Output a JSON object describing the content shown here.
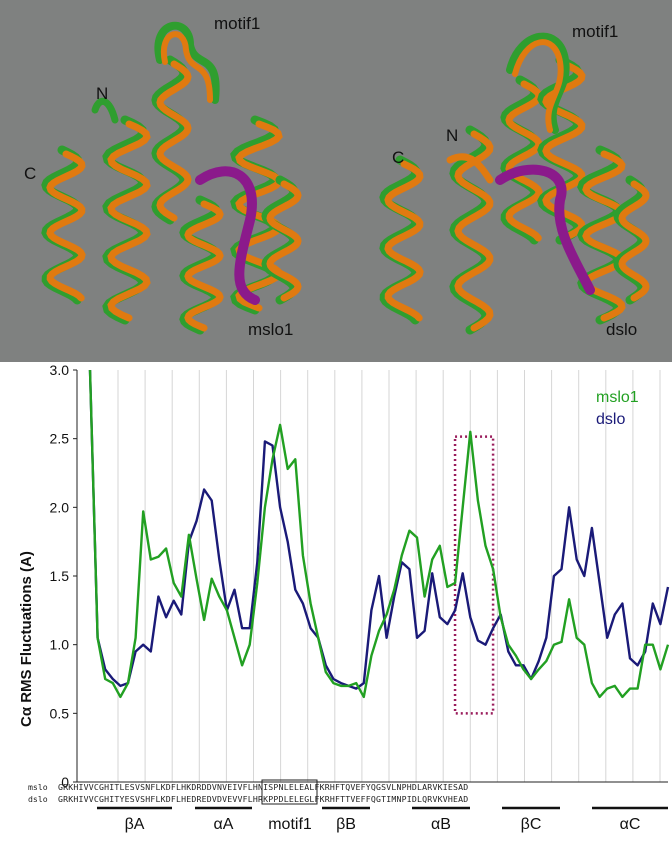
{
  "structures": {
    "left": {
      "motif": "motif1",
      "n_term": "N",
      "c_term": "C",
      "name": "mslo1"
    },
    "right": {
      "motif": "motif1",
      "n_term": "N",
      "c_term": "C",
      "name": "dslo"
    },
    "colors": {
      "ribbon_a": "#2f9e2f",
      "ribbon_b": "#e07a10",
      "motif_region": "#8b1a8b",
      "background": "#7f8180"
    }
  },
  "chart_data": {
    "type": "line",
    "title": "",
    "ylabel": "Cα RMS Fluctuations (A)",
    "xlabel": "",
    "ylim": [
      0,
      3.0
    ],
    "yticks": [
      "0",
      "0.5",
      "1.0",
      "1.5",
      "2.0",
      "2.5",
      "3.0"
    ],
    "grid": "vertical lines",
    "legend_position": "top-right",
    "series": [
      {
        "name": "mslo1",
        "color": "#22a022",
        "values": [
          3.0,
          1.05,
          0.75,
          0.72,
          0.62,
          0.72,
          1.05,
          1.97,
          1.62,
          1.64,
          1.7,
          1.45,
          1.35,
          1.8,
          1.48,
          1.18,
          1.48,
          1.35,
          1.25,
          1.05,
          0.85,
          1.0,
          1.45,
          2.0,
          2.35,
          2.6,
          2.28,
          2.35,
          1.65,
          1.3,
          1.05,
          0.8,
          0.72,
          0.7,
          0.7,
          0.72,
          0.62,
          0.92,
          1.1,
          1.22,
          1.4,
          1.65,
          1.83,
          1.78,
          1.35,
          1.62,
          1.72,
          1.42,
          1.45,
          2.0,
          2.55,
          2.05,
          1.72,
          1.55,
          1.2,
          1.0,
          0.92,
          0.82,
          0.75,
          0.82,
          0.88,
          1.0,
          1.02,
          1.33,
          1.05,
          1.0,
          0.72,
          0.62,
          0.68,
          0.7,
          0.62,
          0.68,
          0.68,
          1.0,
          1.0,
          0.82,
          1.0
        ]
      },
      {
        "name": "dslo",
        "color": "#1a1a78",
        "values": [
          3.0,
          1.05,
          0.82,
          0.75,
          0.7,
          0.72,
          0.95,
          1.0,
          0.95,
          1.35,
          1.2,
          1.32,
          1.22,
          1.75,
          1.9,
          2.13,
          2.05,
          1.62,
          1.25,
          1.4,
          1.12,
          1.12,
          1.6,
          2.48,
          2.45,
          2.0,
          1.75,
          1.4,
          1.3,
          1.12,
          1.05,
          0.85,
          0.75,
          0.72,
          0.7,
          0.68,
          0.72,
          1.25,
          1.5,
          1.05,
          1.35,
          1.6,
          1.55,
          1.05,
          1.1,
          1.52,
          1.2,
          1.15,
          1.25,
          1.52,
          1.2,
          1.03,
          1.0,
          1.12,
          1.22,
          0.95,
          0.85,
          0.85,
          0.75,
          0.88,
          1.05,
          1.5,
          1.55,
          2.0,
          1.62,
          1.5,
          1.85,
          1.45,
          1.05,
          1.22,
          1.3,
          0.9,
          0.85,
          0.95,
          1.3,
          1.15,
          1.42
        ]
      }
    ],
    "highlight_box": {
      "x_range": [
        48,
        53
      ],
      "y_range": [
        0.5,
        2.5
      ]
    }
  },
  "sequences": {
    "mslo_label": "mslo",
    "dslo_label": "dslo",
    "mslo": "GRKHIVVCGHITLESVSNFLKDFLHKDRDDVNVEIVFLHNISPNLELEALFKRHFTQVEFYQGSVLNPHDLARVKIESAD",
    "dslo": "GRKHIVVCGHITYESVSHFLKDFLHEDREDVDVEVVFLHRKPPDLELEGLFKRHFTTVEFFQGTIMNPIDLQRVKVHEAD"
  },
  "secondary_structure": [
    "βA",
    "αA",
    "motif1",
    "βB",
    "αB",
    "βC",
    "αC"
  ]
}
